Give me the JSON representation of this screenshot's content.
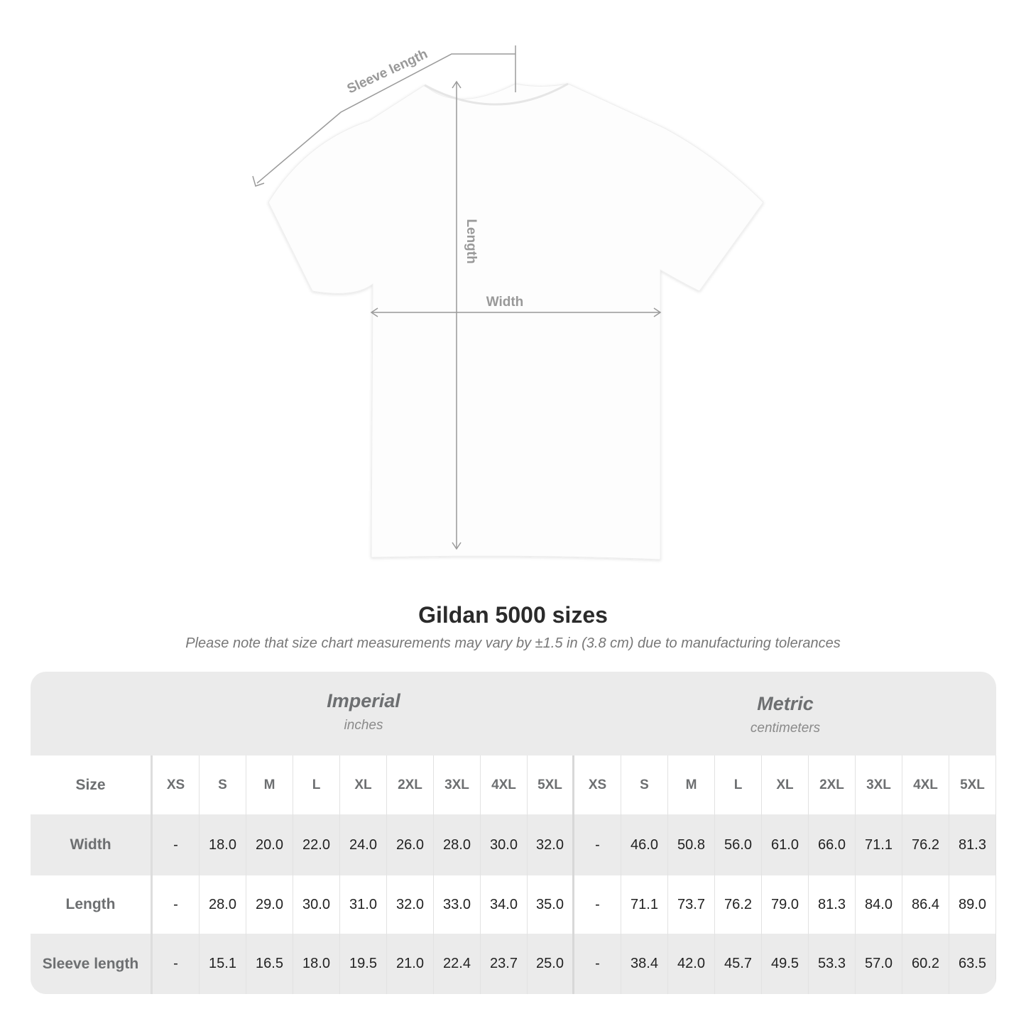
{
  "diagram": {
    "labels": {
      "sleeve": "Sleeve length",
      "length": "Length",
      "width": "Width"
    }
  },
  "title": "Gildan 5000 sizes",
  "note": "Please note that size chart measurements may vary by ±1.5 in (3.8 cm) due to manufacturing tolerances",
  "table": {
    "imperial": {
      "label": "Imperial",
      "unit": "inches"
    },
    "metric": {
      "label": "Metric",
      "unit": "centimeters"
    },
    "size_label": "Size",
    "sizes": [
      "XS",
      "S",
      "M",
      "L",
      "XL",
      "2XL",
      "3XL",
      "4XL",
      "5XL"
    ],
    "rows": [
      {
        "label": "Width",
        "imperial": [
          "-",
          "18.0",
          "20.0",
          "22.0",
          "24.0",
          "26.0",
          "28.0",
          "30.0",
          "32.0"
        ],
        "metric": [
          "-",
          "46.0",
          "50.8",
          "56.0",
          "61.0",
          "66.0",
          "71.1",
          "76.2",
          "81.3"
        ]
      },
      {
        "label": "Length",
        "imperial": [
          "-",
          "28.0",
          "29.0",
          "30.0",
          "31.0",
          "32.0",
          "33.0",
          "34.0",
          "35.0"
        ],
        "metric": [
          "-",
          "71.1",
          "73.7",
          "76.2",
          "79.0",
          "81.3",
          "84.0",
          "86.4",
          "89.0"
        ]
      },
      {
        "label": "Sleeve length",
        "imperial": [
          "-",
          "15.1",
          "16.5",
          "18.0",
          "19.5",
          "21.0",
          "22.4",
          "23.7",
          "25.0"
        ],
        "metric": [
          "-",
          "38.4",
          "42.0",
          "45.7",
          "49.5",
          "53.3",
          "57.0",
          "60.2",
          "63.5"
        ]
      }
    ]
  },
  "colors": {
    "header_bg": "#ebebeb",
    "label_text": "#6d6f71",
    "annotation": "#999999"
  }
}
